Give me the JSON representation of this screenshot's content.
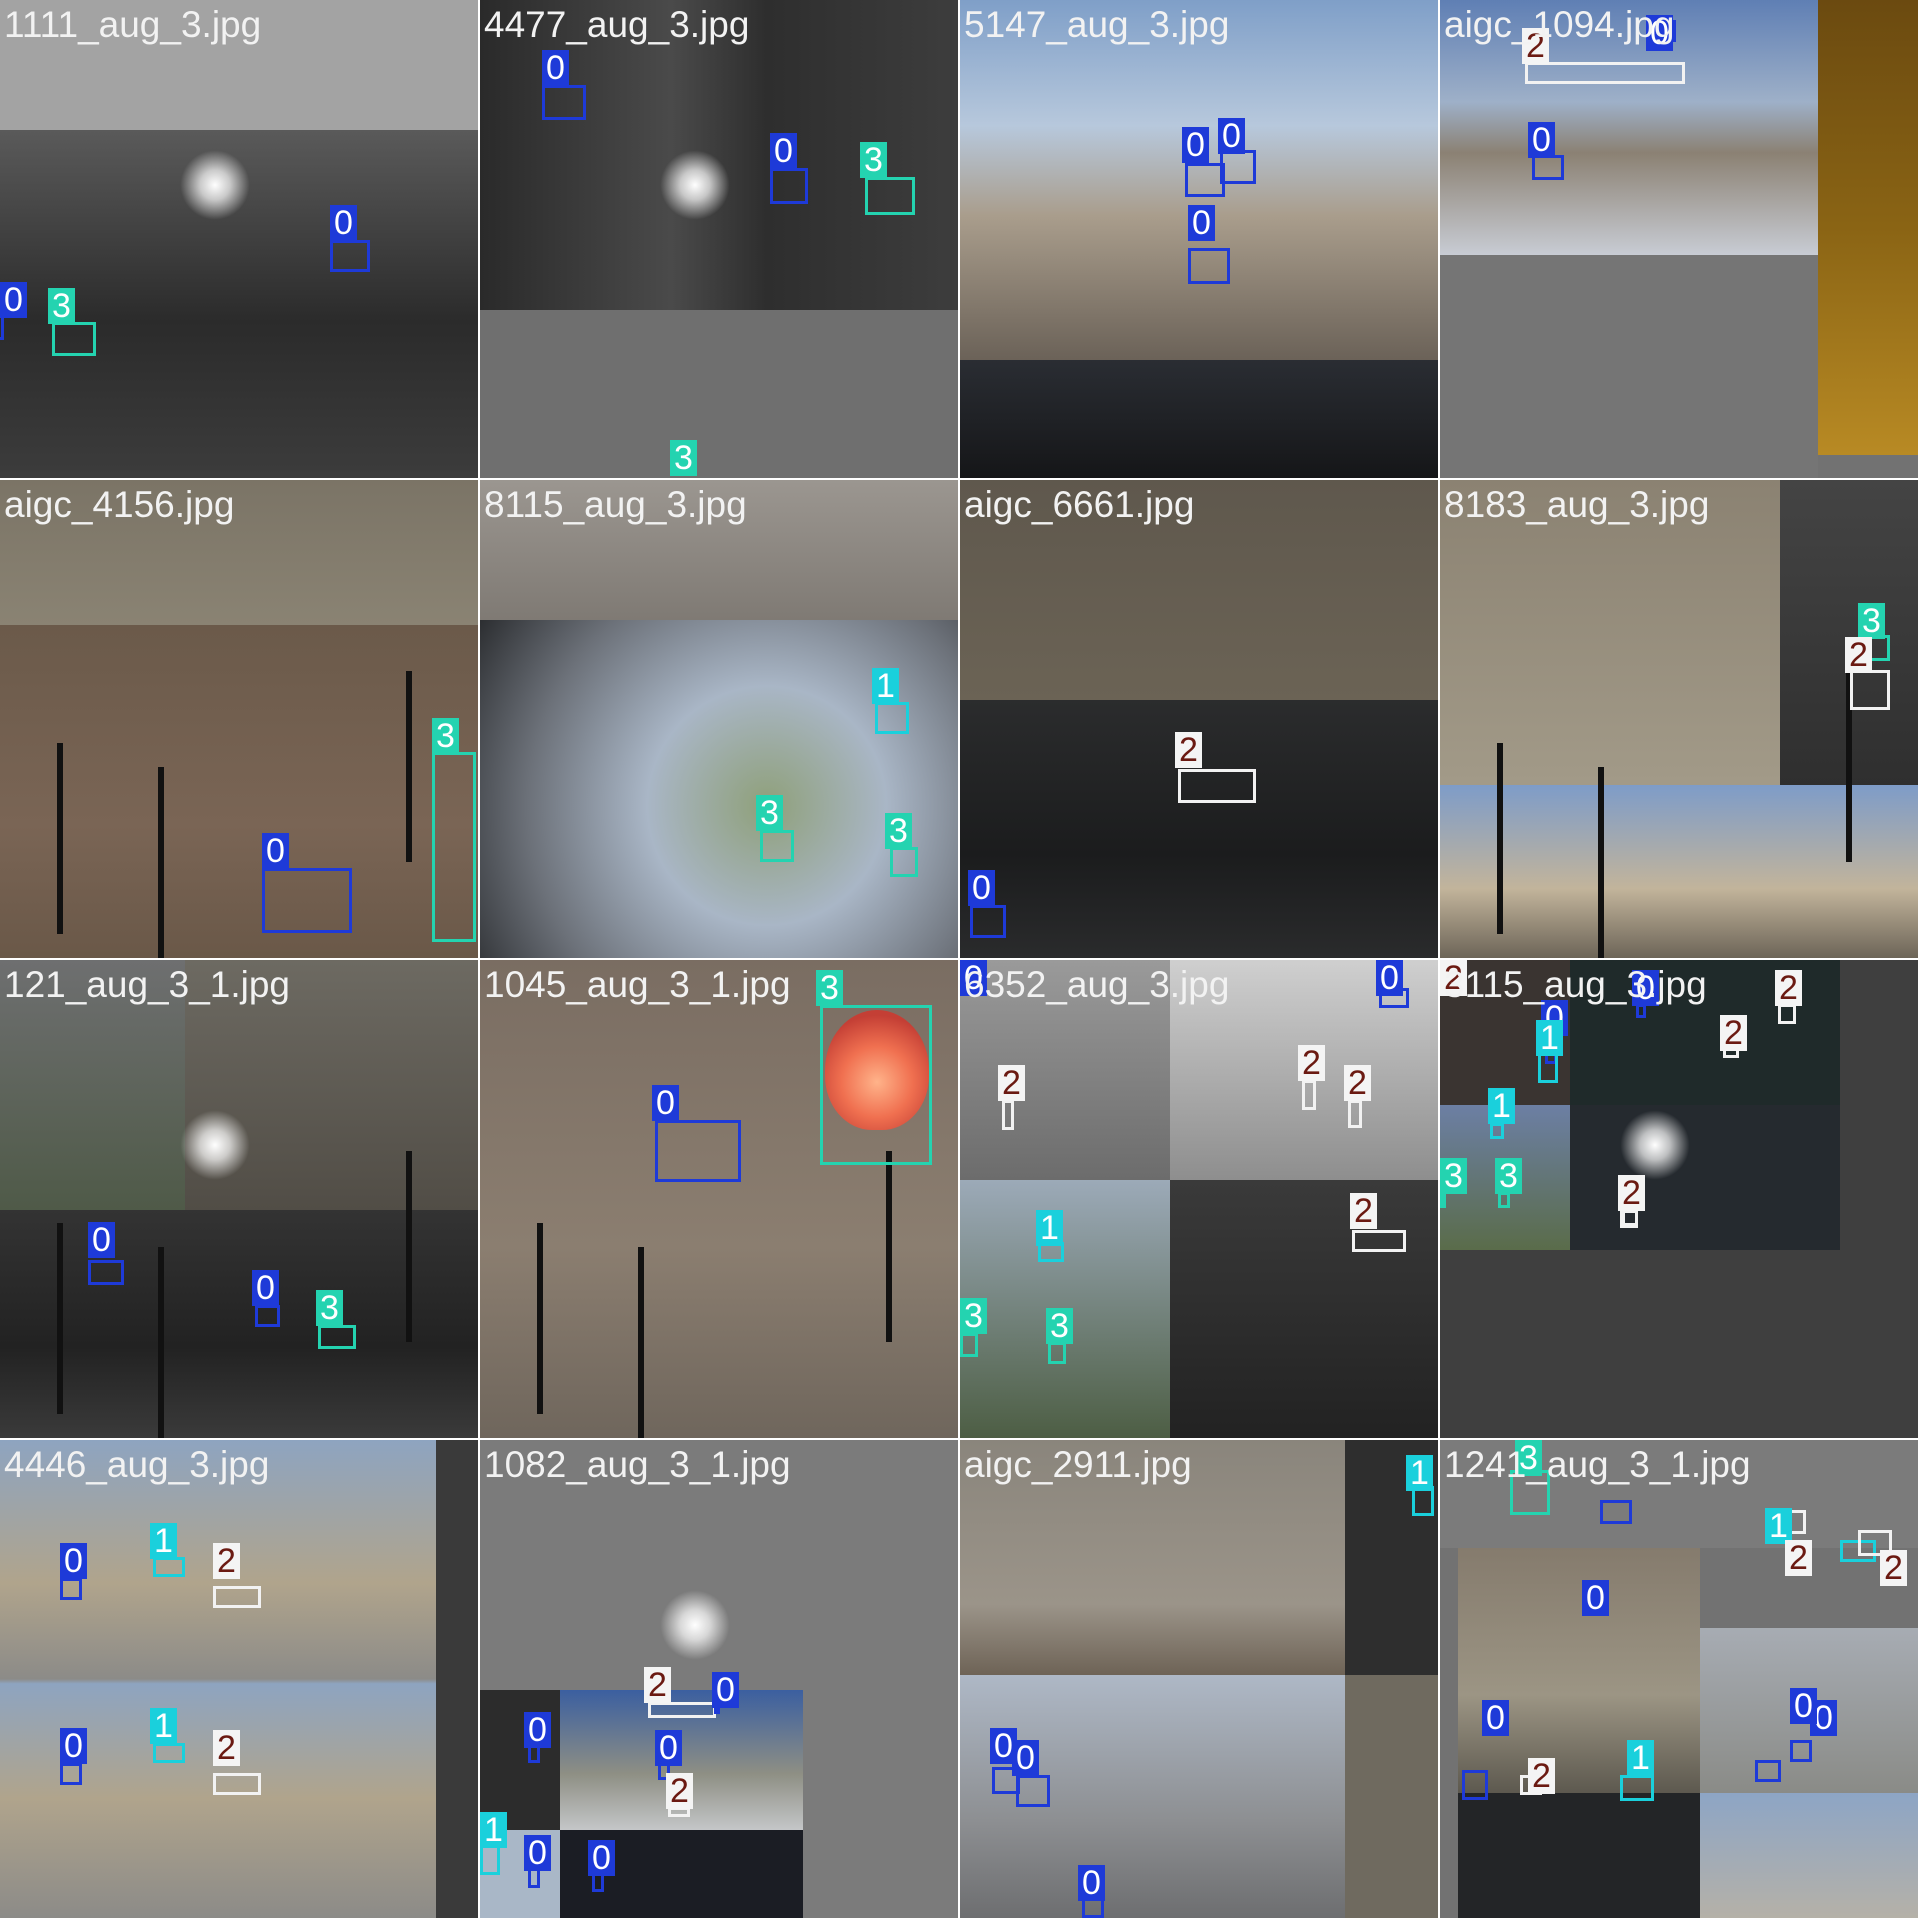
{
  "filenames": [
    "1111_aug_3.jpg",
    "4477_aug_3.jpg",
    "5147_aug_3.jpg",
    "aigc_1094.jpg",
    "aigc_4156.jpg",
    "8115_aug_3.jpg",
    "aigc_6661.jpg",
    "8183_aug_3.jpg",
    "121_aug_3_1.jpg",
    "1045_aug_3_1.jpg",
    "6352_aug_3.jpg",
    "3115_aug_3.jpg",
    "4446_aug_3.jpg",
    "1082_aug_3_1.jpg",
    "aigc_2911.jpg",
    "1241_aug_3_1.jpg"
  ],
  "class_ids": [
    "0",
    "1",
    "2",
    "3"
  ],
  "class_colors": {
    "0": "#1e3ad8",
    "1": "#1ad0dc",
    "2": "#f4f4f4",
    "3": "#24d3b0"
  },
  "detections_per_tile": [
    [
      "0",
      "3",
      "0"
    ],
    [
      "0",
      "0",
      "3",
      "3"
    ],
    [
      "0",
      "0",
      "0"
    ],
    [
      "2",
      "0",
      "0"
    ],
    [
      "3",
      "0"
    ],
    [
      "1",
      "3",
      "3"
    ],
    [
      "2",
      "0"
    ],
    [
      "3",
      "2"
    ],
    [
      "0",
      "0",
      "3"
    ],
    [
      "3",
      "0"
    ],
    [
      "0",
      "0",
      "2",
      "2",
      "2",
      "1",
      "2",
      "3",
      "3"
    ],
    [
      "2",
      "0",
      "0",
      "2",
      "1",
      "2",
      "1",
      "3",
      "3",
      "2",
      "2"
    ],
    [
      "0",
      "1",
      "2",
      "0",
      "1",
      "2"
    ],
    [
      "2",
      "0",
      "0",
      "0",
      "2",
      "1",
      "0",
      "0"
    ],
    [
      "1",
      "0",
      "0",
      "0"
    ],
    [
      "3",
      "0",
      "1",
      "2",
      "2",
      "0",
      "2",
      "1",
      "0",
      "0"
    ]
  ]
}
